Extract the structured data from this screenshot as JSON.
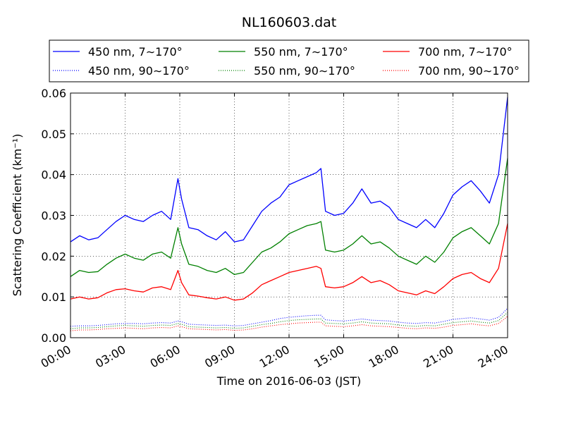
{
  "chart_data": {
    "type": "line",
    "title": "NL160603.dat",
    "xlabel": "Time on 2016-06-03 (JST)",
    "ylabel": "Scattering Coefficient (km⁻¹)",
    "xlim": [
      "00:00",
      "24:00"
    ],
    "ylim": [
      0,
      0.06
    ],
    "grid": true,
    "legend_position": "top",
    "x_ticks": [
      "00:00",
      "03:00",
      "06:00",
      "09:00",
      "12:00",
      "15:00",
      "18:00",
      "21:00",
      "24:00"
    ],
    "y_ticks": [
      "0.00",
      "0.01",
      "0.02",
      "0.03",
      "0.04",
      "0.05",
      "0.06"
    ],
    "x_hours": [
      0,
      0.5,
      1,
      1.5,
      2,
      2.5,
      3,
      3.5,
      4,
      4.5,
      5,
      5.5,
      5.9,
      6.1,
      6.5,
      7,
      7.5,
      8,
      8.5,
      9,
      9.5,
      10,
      10.5,
      11,
      11.5,
      12,
      12.5,
      13,
      13.5,
      13.75,
      14,
      14.5,
      15,
      15.5,
      16,
      16.5,
      17,
      17.5,
      18,
      18.5,
      19,
      19.5,
      20,
      20.5,
      21,
      21.5,
      22,
      22.5,
      23,
      23.5,
      24
    ],
    "series": [
      {
        "name": "450 nm, 7∼170°",
        "color": "#0000ff",
        "style": "solid",
        "values": [
          0.0235,
          0.025,
          0.024,
          0.0245,
          0.0265,
          0.0285,
          0.03,
          0.029,
          0.0285,
          0.03,
          0.031,
          0.029,
          0.039,
          0.034,
          0.027,
          0.0265,
          0.025,
          0.024,
          0.026,
          0.0235,
          0.024,
          0.0275,
          0.031,
          0.033,
          0.0345,
          0.0375,
          0.0385,
          0.0395,
          0.0405,
          0.0415,
          0.031,
          0.03,
          0.0305,
          0.033,
          0.0365,
          0.033,
          0.0335,
          0.032,
          0.029,
          0.028,
          0.027,
          0.029,
          0.027,
          0.0305,
          0.035,
          0.037,
          0.0385,
          0.036,
          0.033,
          0.04,
          0.059
        ]
      },
      {
        "name": "450 nm, 90∼170°",
        "color": "#0000ff",
        "style": "dotted",
        "values": [
          0.0028,
          0.0029,
          0.0029,
          0.003,
          0.0032,
          0.0034,
          0.0035,
          0.0035,
          0.0034,
          0.0036,
          0.0037,
          0.0036,
          0.0041,
          0.0039,
          0.0033,
          0.0032,
          0.0031,
          0.003,
          0.0031,
          0.0029,
          0.003,
          0.0034,
          0.0038,
          0.0042,
          0.0047,
          0.005,
          0.0052,
          0.0054,
          0.0055,
          0.0055,
          0.0044,
          0.0042,
          0.0041,
          0.0043,
          0.0046,
          0.0043,
          0.0042,
          0.0041,
          0.0038,
          0.0036,
          0.0035,
          0.0037,
          0.0036,
          0.004,
          0.0045,
          0.0047,
          0.0049,
          0.0046,
          0.0043,
          0.005,
          0.0072
        ]
      },
      {
        "name": "550 nm, 7∼170°",
        "color": "#008000",
        "style": "solid",
        "values": [
          0.015,
          0.0165,
          0.016,
          0.0162,
          0.018,
          0.0195,
          0.0205,
          0.0195,
          0.019,
          0.0205,
          0.021,
          0.0195,
          0.027,
          0.023,
          0.018,
          0.0175,
          0.0165,
          0.016,
          0.017,
          0.0155,
          0.016,
          0.0185,
          0.021,
          0.022,
          0.0235,
          0.0255,
          0.0265,
          0.0275,
          0.028,
          0.0285,
          0.0215,
          0.021,
          0.0215,
          0.023,
          0.025,
          0.023,
          0.0235,
          0.022,
          0.02,
          0.019,
          0.018,
          0.02,
          0.0185,
          0.021,
          0.0245,
          0.026,
          0.027,
          0.025,
          0.023,
          0.028,
          0.044
        ]
      },
      {
        "name": "550 nm, 90∼170°",
        "color": "#008000",
        "style": "dotted",
        "values": [
          0.0022,
          0.0024,
          0.0024,
          0.0025,
          0.0027,
          0.0029,
          0.003,
          0.0029,
          0.0028,
          0.003,
          0.0031,
          0.003,
          0.0035,
          0.0033,
          0.0027,
          0.0026,
          0.0025,
          0.0024,
          0.0025,
          0.0023,
          0.0024,
          0.0028,
          0.0032,
          0.0035,
          0.0039,
          0.0042,
          0.0044,
          0.0045,
          0.0046,
          0.0046,
          0.0036,
          0.0035,
          0.0034,
          0.0036,
          0.0039,
          0.0036,
          0.0035,
          0.0034,
          0.0031,
          0.0029,
          0.0028,
          0.003,
          0.0029,
          0.0033,
          0.0037,
          0.0039,
          0.0041,
          0.0038,
          0.0036,
          0.0042,
          0.0062
        ]
      },
      {
        "name": "700 nm, 7∼170°",
        "color": "#ff0000",
        "style": "solid",
        "values": [
          0.0095,
          0.01,
          0.0095,
          0.0098,
          0.011,
          0.0118,
          0.012,
          0.0115,
          0.0112,
          0.0122,
          0.0125,
          0.0118,
          0.0165,
          0.0135,
          0.0105,
          0.0102,
          0.0098,
          0.0095,
          0.01,
          0.0092,
          0.0095,
          0.011,
          0.013,
          0.014,
          0.015,
          0.016,
          0.0165,
          0.017,
          0.0175,
          0.017,
          0.0125,
          0.0122,
          0.0125,
          0.0135,
          0.015,
          0.0135,
          0.014,
          0.013,
          0.0115,
          0.011,
          0.0105,
          0.0115,
          0.0108,
          0.0125,
          0.0145,
          0.0155,
          0.016,
          0.0145,
          0.0135,
          0.017,
          0.028
        ]
      },
      {
        "name": "700 nm, 90∼170°",
        "color": "#ff0000",
        "style": "dotted",
        "values": [
          0.0017,
          0.0019,
          0.0019,
          0.002,
          0.0022,
          0.0023,
          0.0024,
          0.0023,
          0.0022,
          0.0024,
          0.0025,
          0.0024,
          0.0029,
          0.0027,
          0.0022,
          0.0021,
          0.002,
          0.0019,
          0.002,
          0.0018,
          0.0019,
          0.0022,
          0.0026,
          0.0029,
          0.0032,
          0.0034,
          0.0036,
          0.0037,
          0.0038,
          0.0038,
          0.0029,
          0.0028,
          0.0027,
          0.0029,
          0.0032,
          0.0029,
          0.0028,
          0.0027,
          0.0025,
          0.0023,
          0.0022,
          0.0024,
          0.0023,
          0.0026,
          0.003,
          0.0032,
          0.0034,
          0.0031,
          0.0029,
          0.0035,
          0.0052
        ]
      }
    ]
  }
}
